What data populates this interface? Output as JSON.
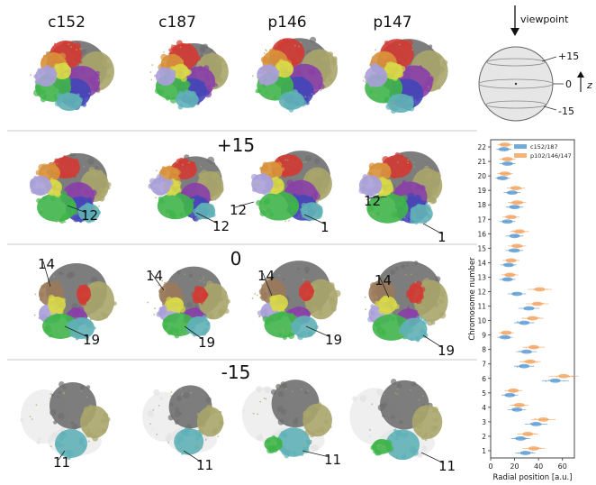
{
  "columns": [
    "c152",
    "c187",
    "p146",
    "p147"
  ],
  "rows": [
    {
      "label": "",
      "numbers": [
        [],
        [],
        [],
        []
      ]
    },
    {
      "label": "+15",
      "numbers": [
        [
          "12"
        ],
        [
          "12"
        ],
        [
          "12",
          "1"
        ],
        [
          "12",
          "1"
        ]
      ]
    },
    {
      "label": "0",
      "numbers": [
        [
          "14",
          "19"
        ],
        [
          "14",
          "19"
        ],
        [
          "14",
          "19"
        ],
        [
          "14",
          "19"
        ]
      ]
    },
    {
      "label": "-15",
      "numbers": [
        [
          "11"
        ],
        [
          "11"
        ],
        [
          "11"
        ],
        [
          "11"
        ]
      ]
    }
  ],
  "sphere": {
    "viewpoint_label": "viewpoint",
    "plus_label": "+15",
    "zero_label": "0",
    "minus_label": "-15",
    "axis_label": "z"
  },
  "colors": {
    "gray": "#6f6f6f",
    "red": "#d23b33",
    "orange": "#d9913a",
    "yellow": "#d8d84a",
    "olive": "#a9a56b",
    "purple": "#8a3fa8",
    "blue": "#4446b8",
    "green": "#3fb54a",
    "teal": "#5fb1b7",
    "lavender": "#a8a0d8",
    "brown": "#9a7a5a",
    "ghost": "#e2e2e2",
    "series_a": "#5c9bd1",
    "series_b": "#f4a460"
  },
  "chart_data": {
    "type": "scatter",
    "xlabel": "Radial position [a.u.]",
    "ylabel": "Chromosome number",
    "xlim": [
      0,
      70
    ],
    "xticks": [
      0,
      20,
      40,
      60
    ],
    "categories": [
      "1",
      "2",
      "3",
      "4",
      "5",
      "6",
      "7",
      "8",
      "9",
      "10",
      "11",
      "12",
      "13",
      "14",
      "15",
      "16",
      "17",
      "18",
      "19",
      "20",
      "21",
      "22"
    ],
    "legend_position": "top-right",
    "series": [
      {
        "name": "c152/187",
        "values": [
          29,
          25,
          38,
          22,
          16,
          54,
          28,
          30,
          12,
          28,
          32,
          22,
          14,
          15,
          20,
          20,
          14,
          20,
          18,
          10,
          14,
          11
        ]
      },
      {
        "name": "p102/146/147",
        "values": [
          36,
          31,
          44,
          24,
          19,
          61,
          33,
          36,
          13,
          35,
          39,
          41,
          16,
          17,
          22,
          24,
          17,
          22,
          21,
          12,
          14,
          12
        ]
      }
    ]
  }
}
